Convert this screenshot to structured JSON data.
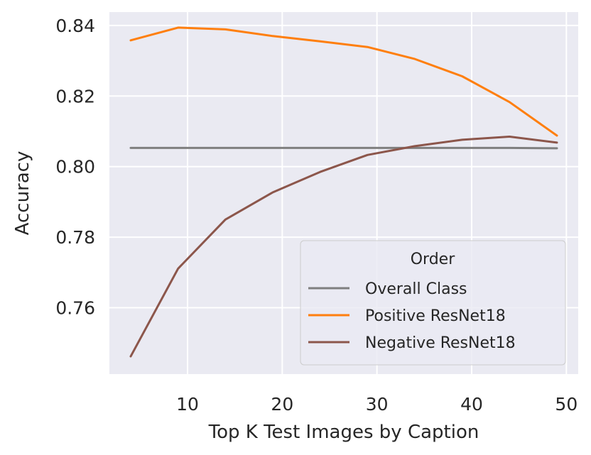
{
  "chart_data": {
    "type": "line",
    "title": "",
    "xlabel": "Top K Test Images by Caption",
    "ylabel": "Accuracy",
    "xlim": [
      1.75,
      51.25
    ],
    "ylim": [
      0.7412,
      0.8438
    ],
    "xticks": [
      10,
      20,
      30,
      40,
      50
    ],
    "yticks": [
      0.76,
      0.78,
      0.8,
      0.82,
      0.84
    ],
    "xtick_labels": [
      "10",
      "20",
      "30",
      "40",
      "50"
    ],
    "ytick_labels": [
      "0.76",
      "0.78",
      "0.80",
      "0.82",
      "0.84"
    ],
    "grid": true,
    "legend": {
      "title": "Order",
      "placement": "lower-right"
    },
    "x": [
      4,
      9,
      14,
      19,
      24,
      29,
      34,
      39,
      44,
      49
    ],
    "series": [
      {
        "name": "Overall Class",
        "color": "#7f7f7f",
        "values": [
          0.8053,
          0.8053,
          0.8053,
          0.8053,
          0.8053,
          0.8053,
          0.8053,
          0.8053,
          0.8053,
          0.8052
        ]
      },
      {
        "name": "Positive ResNet18",
        "color": "#ff7f0e",
        "values": [
          0.8358,
          0.8394,
          0.8389,
          0.837,
          0.8355,
          0.8339,
          0.8305,
          0.8256,
          0.8183,
          0.8088
        ]
      },
      {
        "name": "Negative ResNet18",
        "color": "#8c564b",
        "values": [
          0.7462,
          0.7711,
          0.785,
          0.7927,
          0.7985,
          0.8033,
          0.8058,
          0.8076,
          0.8085,
          0.8068
        ]
      }
    ]
  }
}
